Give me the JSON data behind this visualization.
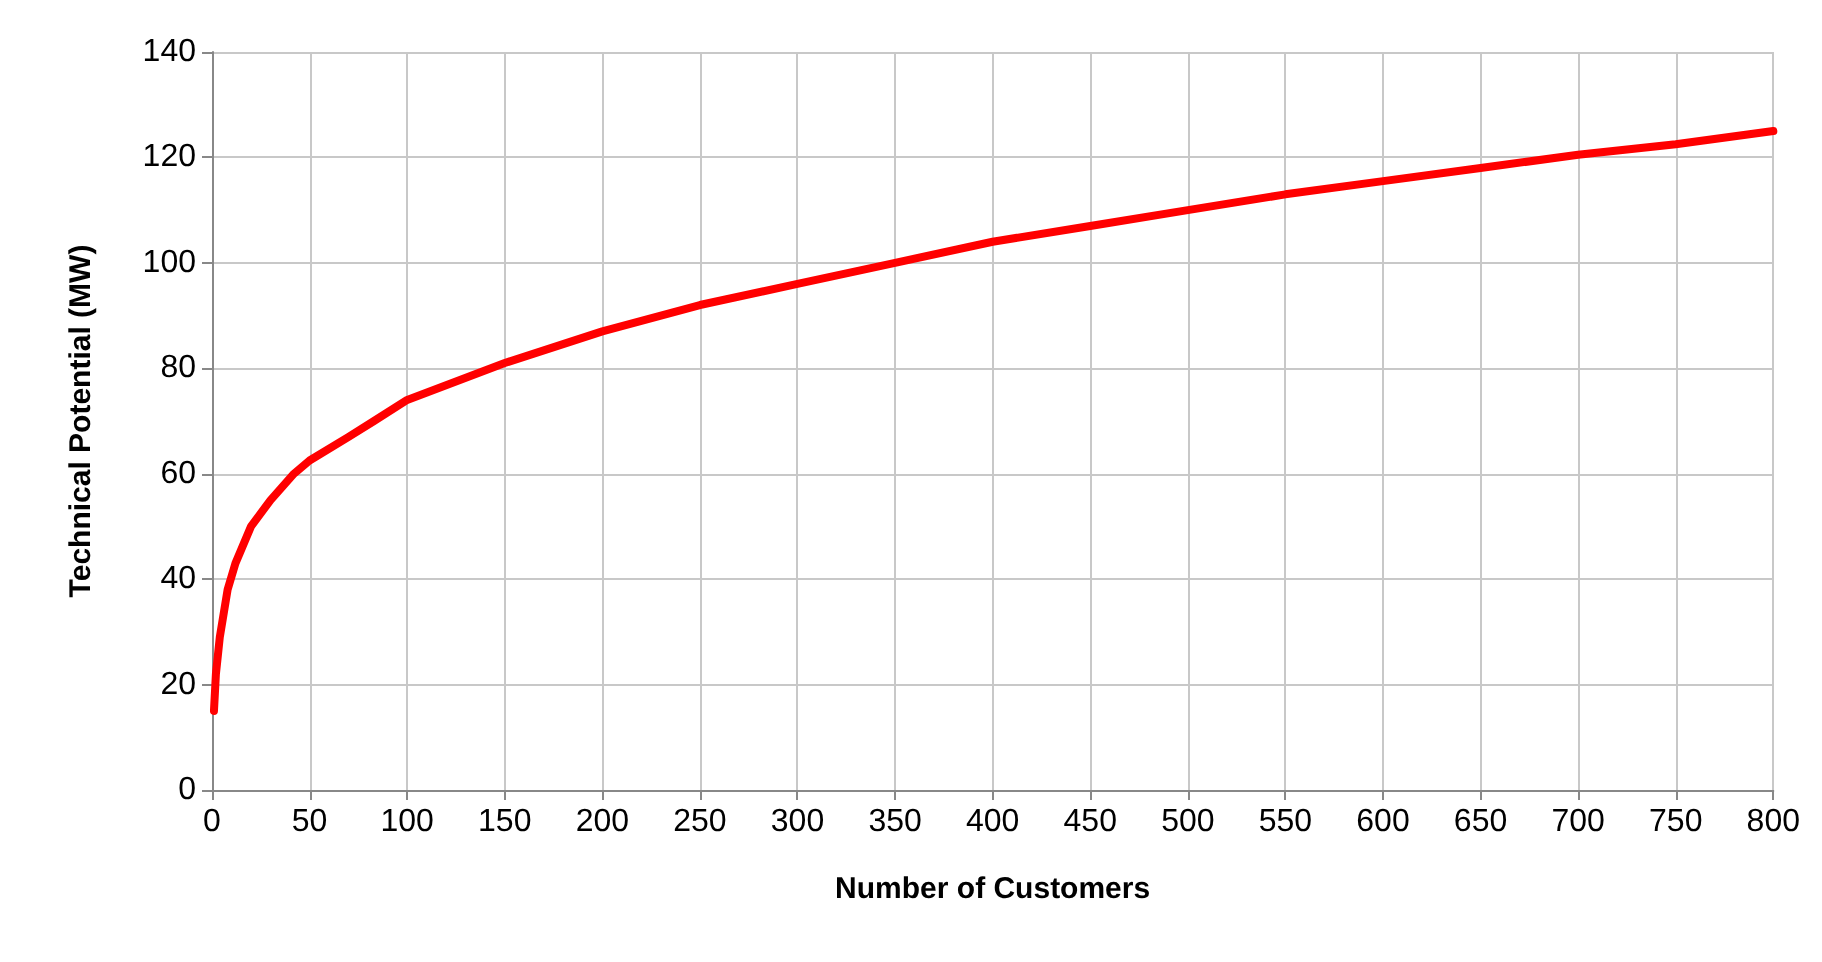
{
  "chart_data": {
    "type": "line",
    "xlabel": "Number of Customers",
    "ylabel": "Technical Potential (MW)",
    "series": [
      {
        "color": "#ff0000",
        "x": [
          1,
          2,
          4,
          8,
          12,
          20,
          30,
          42,
          50,
          70,
          83,
          100,
          150,
          200,
          250,
          300,
          350,
          400,
          450,
          500,
          550,
          600,
          650,
          700,
          750,
          800
        ],
        "values": [
          15,
          22,
          29,
          38,
          43,
          50,
          55,
          60,
          62.5,
          67,
          70,
          74,
          81,
          87,
          92,
          96,
          100,
          104,
          107,
          110,
          113,
          115.5,
          118,
          120.5,
          122.5,
          125
        ]
      }
    ],
    "xlim": [
      0,
      800
    ],
    "xticks": [
      0,
      50,
      100,
      150,
      200,
      250,
      300,
      350,
      400,
      450,
      500,
      550,
      600,
      650,
      700,
      750,
      800
    ],
    "ylim": [
      0,
      140
    ],
    "yticks": [
      0,
      20,
      40,
      60,
      80,
      100,
      120,
      140
    ],
    "grid": true,
    "marker": "none",
    "line_style": "solid"
  }
}
